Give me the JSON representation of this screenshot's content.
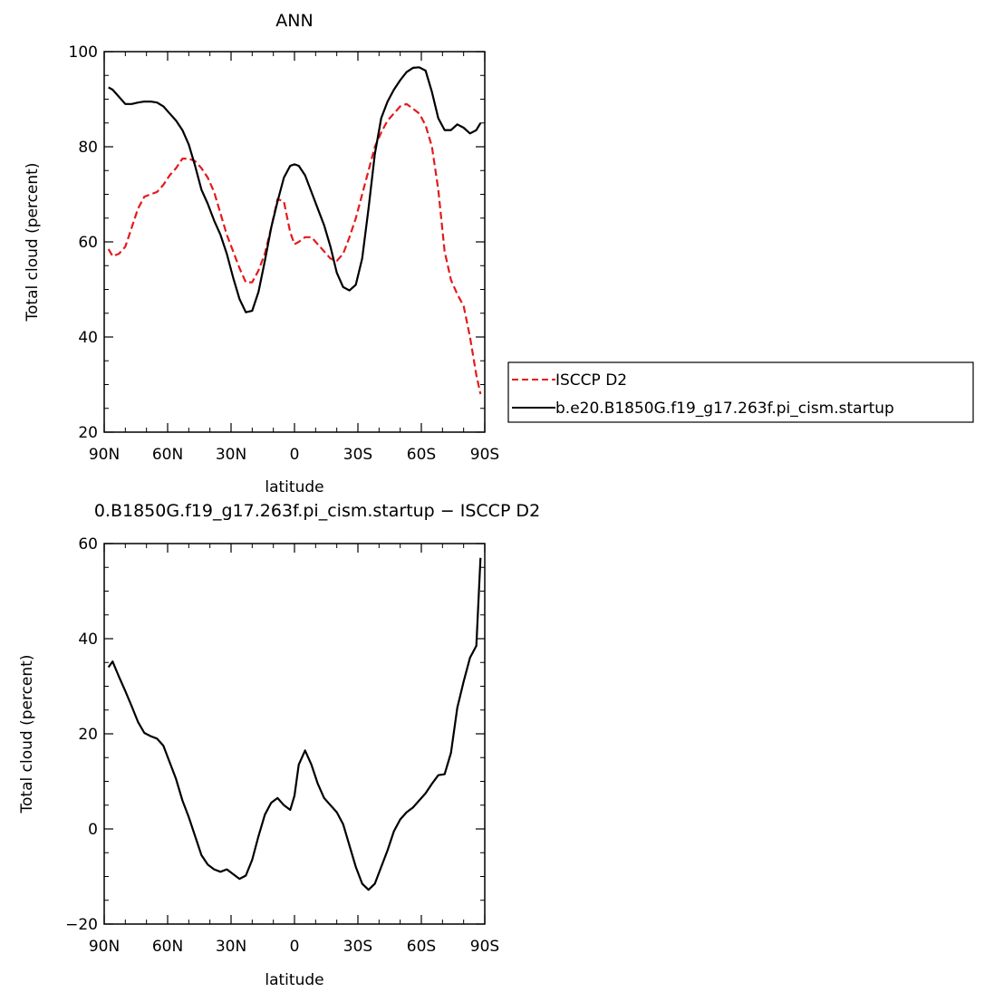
{
  "colors": {
    "model": "#000000",
    "obs": "#e41a1c",
    "axes": "#000000"
  },
  "chart_data": [
    {
      "type": "line",
      "title": "ANN",
      "xlabel": "latitude",
      "ylabel": "Total cloud (percent)",
      "xlim": [
        90,
        -90
      ],
      "ylim": [
        20,
        100
      ],
      "xticks": [
        90,
        60,
        30,
        0,
        -30,
        -60,
        -90
      ],
      "xtick_labels": [
        "90N",
        "60N",
        "30N",
        "0",
        "30S",
        "60S",
        "90S"
      ],
      "yticks": [
        20,
        40,
        60,
        80,
        100
      ],
      "ytick_labels": [
        "20",
        "40",
        "60",
        "80",
        "100"
      ],
      "legend_position": "right-bottom outside",
      "series": [
        {
          "name": "ISCCP D2",
          "style": "dashed",
          "color": "#e41a1c",
          "x": [
            88,
            86,
            83,
            80,
            77,
            74,
            71,
            68,
            65,
            62,
            59,
            56,
            53,
            50,
            47,
            44,
            41,
            38,
            35,
            32,
            29,
            26,
            23,
            20,
            17,
            14,
            11,
            8,
            5,
            2,
            0,
            -2,
            -5,
            -8,
            -11,
            -14,
            -17,
            -20,
            -23,
            -26,
            -29,
            -32,
            -35,
            -38,
            -41,
            -44,
            -47,
            -50,
            -53,
            -56,
            -59,
            -62,
            -65,
            -68,
            -71,
            -74,
            -77,
            -80,
            -83,
            -86,
            -88
          ],
          "y": [
            58.5,
            57,
            57.5,
            59,
            63,
            67,
            69.5,
            70,
            70.5,
            72,
            74,
            75.5,
            77.5,
            77.5,
            77,
            75.5,
            73.5,
            70.5,
            66,
            61.5,
            58,
            54.5,
            51.5,
            51.5,
            54,
            57.5,
            63,
            69,
            68.5,
            62,
            59.5,
            60,
            61,
            61,
            59.5,
            58,
            56.5,
            56,
            57.5,
            61,
            65,
            70,
            75,
            80,
            83,
            85.5,
            87,
            88.5,
            89,
            88,
            87,
            84.5,
            80,
            71,
            58,
            52,
            49,
            46.5,
            40,
            32,
            28
          ]
        },
        {
          "name": "b.e20.B1850G.f19_g17.263f.pi_cism.startup",
          "style": "solid",
          "color": "#000000",
          "x": [
            88,
            86,
            83,
            80,
            77,
            74,
            71,
            68,
            65,
            62,
            59,
            56,
            53,
            50,
            47,
            44,
            41,
            38,
            35,
            32,
            29,
            26,
            23,
            20,
            17,
            14,
            11,
            8,
            5,
            2,
            0,
            -2,
            -5,
            -8,
            -11,
            -14,
            -17,
            -20,
            -23,
            -26,
            -29,
            -32,
            -35,
            -38,
            -41,
            -44,
            -47,
            -50,
            -53,
            -56,
            -59,
            -62,
            -65,
            -68,
            -71,
            -74,
            -77,
            -80,
            -83,
            -86,
            -88
          ],
          "y": [
            92.5,
            92,
            90.5,
            89,
            89,
            89.3,
            89.5,
            89.5,
            89.3,
            88.5,
            87,
            85.5,
            83.5,
            80.5,
            76,
            71,
            68,
            64.5,
            61.5,
            57.5,
            52.5,
            48,
            45.2,
            45.5,
            49.5,
            56,
            63,
            68.5,
            73.5,
            76,
            76.3,
            76,
            74,
            70.5,
            67,
            63.5,
            59,
            53.5,
            50.5,
            49.8,
            51,
            56.5,
            67,
            78.5,
            86,
            89.5,
            92,
            94,
            95.7,
            96.6,
            96.7,
            96,
            91.5,
            86,
            83.5,
            83.5,
            84.7,
            84,
            82.8,
            83.5,
            85
          ]
        }
      ]
    },
    {
      "type": "line",
      "title": "0.B1850G.f19_g17.263f.pi_cism.startup − ISCCP D2",
      "xlabel": "latitude",
      "ylabel": "Total cloud (percent)",
      "xlim": [
        90,
        -90
      ],
      "ylim": [
        -20,
        60
      ],
      "xticks": [
        90,
        60,
        30,
        0,
        -30,
        -60,
        -90
      ],
      "xtick_labels": [
        "90N",
        "60N",
        "30N",
        "0",
        "30S",
        "60S",
        "90S"
      ],
      "yticks": [
        -20,
        0,
        20,
        40,
        60
      ],
      "ytick_labels": [
        "−20",
        "0",
        "20",
        "40",
        "60"
      ],
      "series": [
        {
          "style": "solid",
          "color": "#000000",
          "x": [
            88,
            86,
            83,
            80,
            77,
            74,
            71,
            68,
            65,
            62,
            59,
            56,
            53,
            50,
            47,
            44,
            41,
            38,
            35,
            32,
            29,
            26,
            23,
            20,
            17,
            14,
            11,
            8,
            5,
            2,
            0,
            -2,
            -5,
            -8,
            -11,
            -14,
            -17,
            -20,
            -23,
            -26,
            -29,
            -32,
            -35,
            -38,
            -41,
            -44,
            -47,
            -50,
            -53,
            -56,
            -59,
            -62,
            -65,
            -68,
            -71,
            -74,
            -77,
            -80,
            -83,
            -86,
            -88
          ],
          "y": [
            34,
            35.2,
            32,
            29,
            25.8,
            22.5,
            20.2,
            19.5,
            19,
            17.5,
            14,
            10.5,
            6,
            2.5,
            -1.5,
            -5.5,
            -7.5,
            -8.5,
            -9,
            -8.5,
            -9.5,
            -10.5,
            -9.8,
            -6.5,
            -1.5,
            3,
            5.5,
            6.5,
            5,
            4,
            7,
            13.5,
            16.5,
            13.5,
            9.5,
            6.5,
            5,
            3.5,
            1,
            -3.5,
            -8,
            -11.5,
            -12.8,
            -11.5,
            -8,
            -4.5,
            -0.5,
            2,
            3.5,
            4.5,
            6,
            7.5,
            9.5,
            11.3,
            11.5,
            16,
            25.5,
            31,
            36,
            38.5,
            57
          ]
        }
      ]
    }
  ]
}
